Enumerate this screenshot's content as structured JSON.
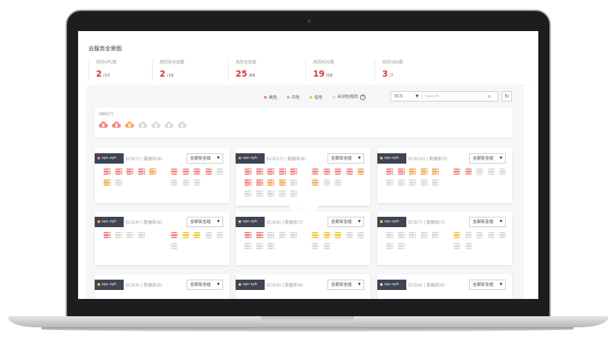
{
  "colors": {
    "high": "#f28585",
    "medium": "#f5a95b",
    "low": "#f5c83c",
    "unknown": "#d9d9d9",
    "danger": "#d9363e"
  },
  "title": "云服务全景图",
  "stats": [
    {
      "label": "风险VPC数",
      "value": "2",
      "total": "/10"
    },
    {
      "label": "风险安全组数",
      "value": "2",
      "total": "/18"
    },
    {
      "label": "风险主机数",
      "value": "25",
      "total": "/66"
    },
    {
      "label": "风险RDS数",
      "value": "19",
      "total": "/58"
    },
    {
      "label": "风险OBS数",
      "value": "3",
      "total": "/7"
    }
  ],
  "legend": [
    {
      "label": "高危",
      "level": "high"
    },
    {
      "label": "中危",
      "level": "medium"
    },
    {
      "label": "低危",
      "level": "low"
    },
    {
      "label": "未识别风险",
      "level": "unknown"
    }
  ],
  "help_icon": "?",
  "search": {
    "type": "ECS",
    "placeholder": "Search",
    "icon": "search-icon"
  },
  "refresh_icon": "↻",
  "obs": {
    "label": "OBS(7)",
    "items": [
      "high",
      "high",
      "medium",
      "unknown",
      "unknown",
      "unknown",
      "unknown"
    ]
  },
  "cards": [
    {
      "vpc": "vpc-zyh",
      "level": "high",
      "count": "ECS(7) | 数据库(8)",
      "group": "全部安全组",
      "servers": [
        "high",
        "high",
        "high",
        "high",
        "medium",
        "medium",
        "unknown"
      ],
      "dbs": [
        "high",
        "high",
        "high",
        "high",
        "unknown",
        "unknown",
        "unknown",
        "unknown"
      ]
    },
    {
      "vpc": "vpc-zyh",
      "level": "high",
      "count": "ECS(17) | 数据库(8)",
      "group": "全部安全组",
      "servers": [
        "high",
        "high",
        "high",
        "high",
        "high",
        "high",
        "high",
        "medium",
        "medium",
        "unknown",
        "unknown",
        "unknown",
        "unknown",
        "unknown",
        "unknown"
      ],
      "dbs": [
        "high",
        "high",
        "high",
        "high",
        "medium",
        "medium",
        "unknown",
        "unknown"
      ],
      "more": "..."
    },
    {
      "vpc": "vpc-zyh",
      "level": "medium",
      "count": "ECS(10) | 数据库(5)",
      "group": "全部安全组",
      "servers": [
        "high",
        "high",
        "medium",
        "medium",
        "medium",
        "unknown",
        "unknown",
        "unknown",
        "unknown",
        "unknown"
      ],
      "dbs": [
        "high",
        "high",
        "unknown",
        "unknown",
        "unknown"
      ]
    },
    {
      "vpc": "vpc-zyh",
      "level": "medium",
      "count": "ECS(4) | 数据库(6)",
      "group": "全部安全组",
      "servers": [
        "high",
        "unknown",
        "unknown",
        "unknown"
      ],
      "dbs": [
        "high",
        "low",
        "low",
        "unknown",
        "unknown",
        "unknown"
      ]
    },
    {
      "vpc": "vpc-zyh",
      "level": "low",
      "count": "ECS(8) | 数据库(7)",
      "group": "全部安全组",
      "servers": [
        "high",
        "high",
        "unknown",
        "unknown",
        "unknown",
        "unknown",
        "unknown",
        "unknown"
      ],
      "dbs": [
        "low",
        "low",
        "low",
        "unknown",
        "unknown",
        "unknown",
        "unknown"
      ]
    },
    {
      "vpc": "vpc-zyh",
      "level": "low",
      "count": "ECS(7) | 数据库(7)",
      "group": "全部安全组",
      "servers": [
        "unknown",
        "unknown",
        "unknown",
        "unknown",
        "unknown",
        "unknown",
        "unknown"
      ],
      "dbs": [
        "low",
        "unknown",
        "unknown",
        "unknown",
        "unknown",
        "unknown",
        "unknown"
      ]
    },
    {
      "vpc": "vpc-zyh",
      "level": "low",
      "count": "ECS(4) | 数据库(6)",
      "group": "全部安全组",
      "servers": [],
      "dbs": []
    },
    {
      "vpc": "vpc-zyh",
      "level": "low",
      "count": "ECS(4) | 数据库(6)",
      "group": "全部安全组",
      "servers": [],
      "dbs": []
    },
    {
      "vpc": "vpc-zyh",
      "level": "unknown",
      "count": "ECS(4) | 数据库(6)",
      "group": "全部安全组",
      "servers": [],
      "dbs": []
    }
  ]
}
